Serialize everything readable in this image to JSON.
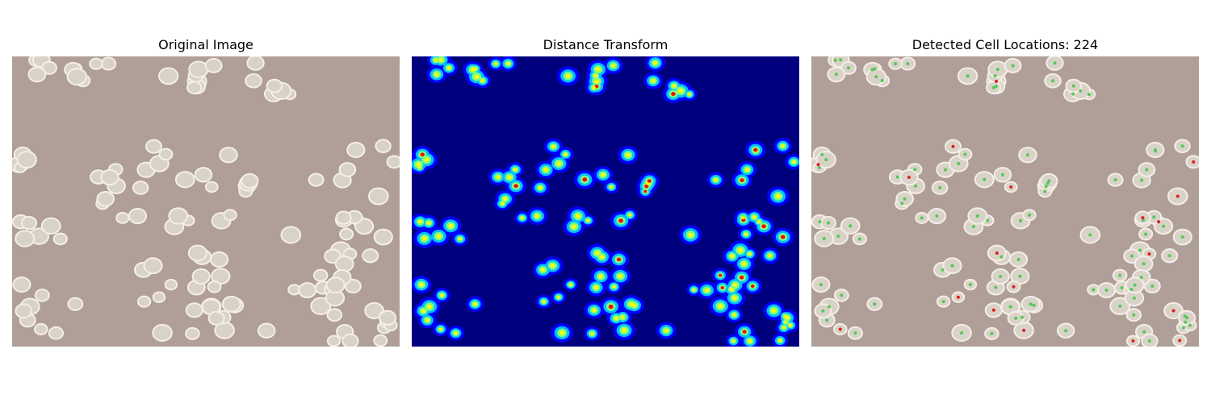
{
  "figure": {
    "panels": [
      {
        "title": "Original Image",
        "kind": "micrograph",
        "background_color": "#b09f98",
        "cell_color": "#d9d2c8",
        "edge_color": "#f4efe6"
      },
      {
        "title": "Distance Transform",
        "kind": "heatmap",
        "colormap": [
          "#00007f",
          "#0000ff",
          "#00bfff",
          "#7fff7f",
          "#ffff00",
          "#ff0000",
          "#7f0000"
        ]
      },
      {
        "title": "Detected Cell Locations: 224",
        "kind": "overlay",
        "inlier_marker_color": "#55c855",
        "outlier_marker_color": "#e02020"
      }
    ]
  }
}
